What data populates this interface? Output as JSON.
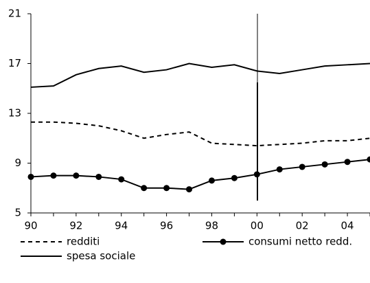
{
  "chart_data": {
    "type": "line",
    "categories": [
      "90",
      null,
      "92",
      null,
      "94",
      null,
      "96",
      null,
      "98",
      null,
      "00",
      null,
      "02",
      null,
      "04",
      null
    ],
    "series": [
      {
        "name": "redditi",
        "color": "#000000",
        "style": "dashed",
        "marker": "none",
        "values": [
          12.3,
          12.3,
          12.2,
          12.0,
          11.6,
          11.0,
          11.3,
          11.5,
          10.6,
          10.5,
          10.4,
          10.5,
          10.6,
          10.8,
          10.8,
          11.0
        ]
      },
      {
        "name": "consumi netto redd.",
        "color": "#000000",
        "style": "solid",
        "marker": "circle",
        "values": [
          7.9,
          8.0,
          8.0,
          7.9,
          7.7,
          7.0,
          7.0,
          6.9,
          7.6,
          7.8,
          8.1,
          8.5,
          8.7,
          8.9,
          9.1,
          9.3
        ]
      },
      {
        "name": "spesa sociale",
        "color": "#000000",
        "style": "solid",
        "marker": "none",
        "values": [
          15.1,
          15.2,
          16.1,
          16.6,
          16.8,
          16.3,
          16.5,
          17.0,
          16.7,
          16.9,
          16.4,
          16.2,
          16.5,
          16.8,
          16.9,
          17.0
        ]
      }
    ],
    "ylim": [
      5,
      21
    ],
    "yticks": [
      5,
      9,
      13,
      17,
      21
    ],
    "grid": false
  }
}
